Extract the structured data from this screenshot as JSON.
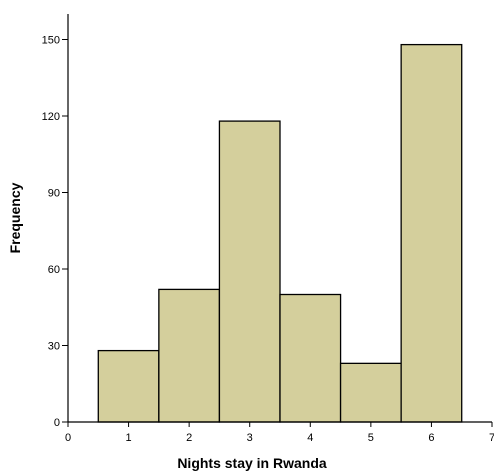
{
  "chart_data": {
    "type": "bar",
    "title": "",
    "xlabel": "Nights stay in Rwanda",
    "ylabel": "Frequency",
    "categories": [
      1,
      2,
      3,
      4,
      5,
      6
    ],
    "values": [
      28,
      52,
      118,
      50,
      23,
      148
    ],
    "bar_width": 1,
    "xlim": [
      0,
      7
    ],
    "ylim": [
      0,
      160
    ],
    "xticks": [
      "0",
      "1",
      "2",
      "3",
      "4",
      "5",
      "6",
      "7"
    ],
    "yticks": [
      "0",
      "30",
      "60",
      "90",
      "120",
      "150"
    ],
    "bar_color": "#d4cf9c",
    "grid": false,
    "legend": "none"
  }
}
